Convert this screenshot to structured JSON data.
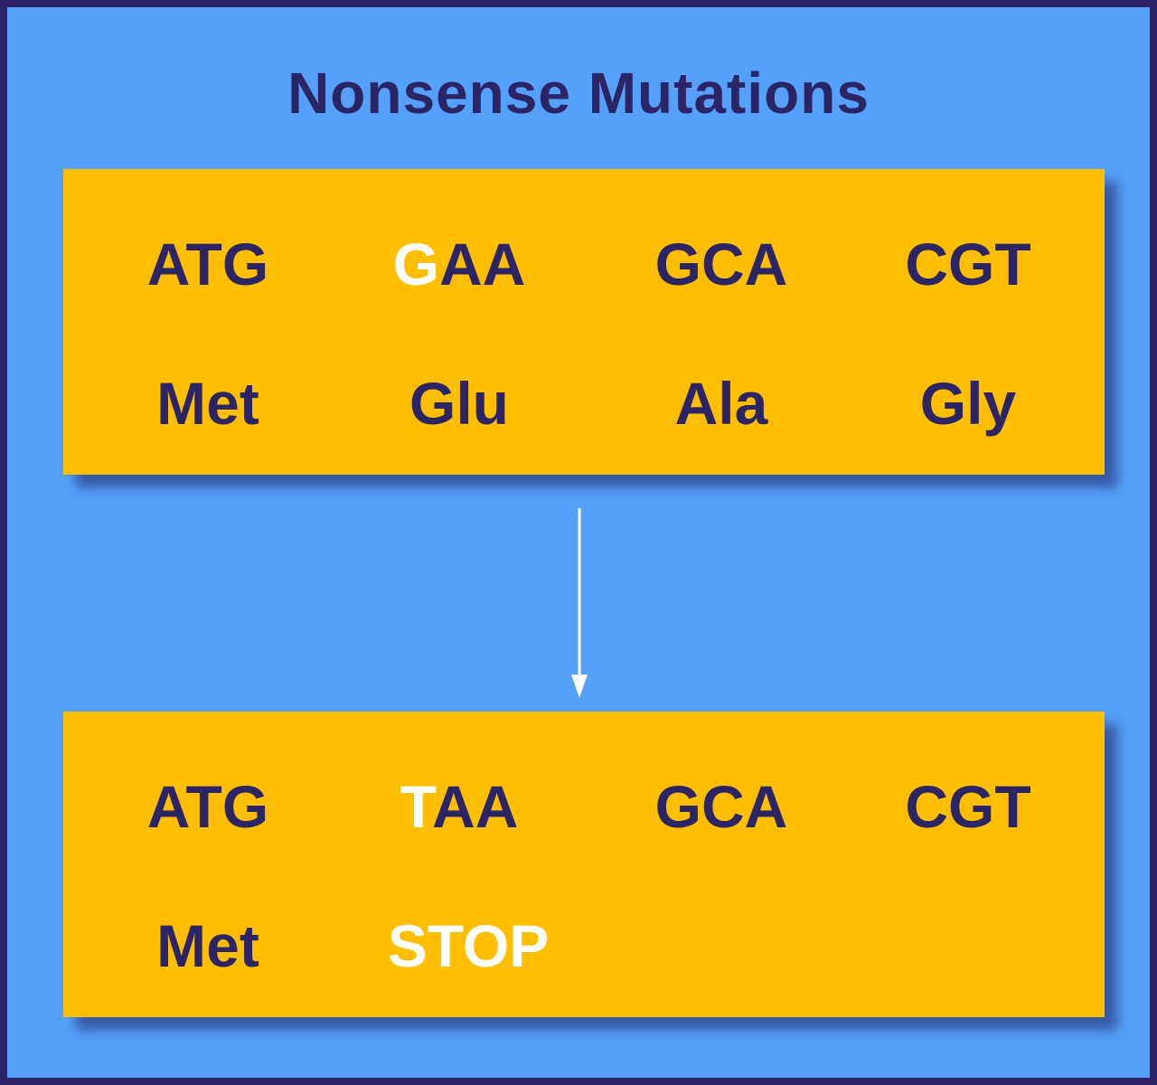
{
  "title": "Nonsense Mutations",
  "boxes": [
    {
      "codons": [
        [
          "ATG"
        ],
        [
          "G",
          "AA"
        ],
        [
          "GCA"
        ],
        [
          "CGT"
        ]
      ],
      "amino_acids": [
        "Met",
        "Glu",
        "Ala",
        "Gly"
      ],
      "highlight_codon": {
        "codon": 1,
        "segment": 0
      }
    },
    {
      "codons": [
        [
          "ATG"
        ],
        [
          "T",
          "AA"
        ],
        [
          "GCA"
        ],
        [
          "CGT"
        ]
      ],
      "amino_acids": [
        "Met",
        "STOP"
      ],
      "highlight_codon": {
        "codon": 1,
        "segment": 0
      },
      "highlight_amino": 1
    }
  ]
}
